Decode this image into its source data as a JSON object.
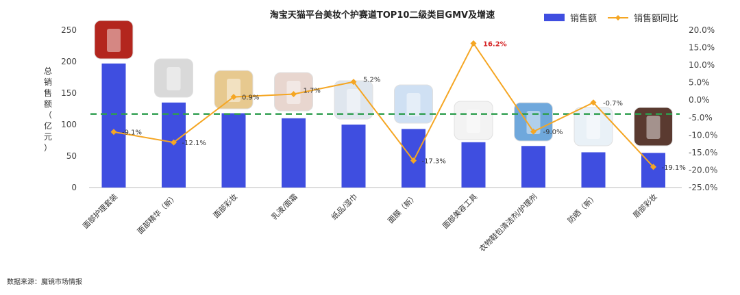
{
  "chart_data": {
    "type": "bar",
    "title": "淘宝天猫平台美妆个护赛道TOP10二级类目GMV及增速",
    "ylabel_left": "总销售额（亿元）",
    "categories": [
      "面部护理套装",
      "面部精华（新）",
      "面部彩妆",
      "乳液/面霜",
      "纸品/湿巾",
      "面膜（新）",
      "面部美容工具",
      "衣物鞋包清洁剂/护理剂",
      "防晒（新）",
      "唇部彩妆"
    ],
    "series": [
      {
        "name": "销售额",
        "kind": "bar",
        "axis": "left",
        "color": "#3f4ee0",
        "values": [
          197,
          135,
          118,
          110,
          100,
          93,
          72,
          66,
          56,
          55
        ]
      },
      {
        "name": "销售额同比",
        "kind": "line",
        "axis": "right",
        "color": "#f5a623",
        "values": [
          -9.1,
          -12.1,
          0.9,
          1.7,
          5.2,
          -17.3,
          16.2,
          -9.0,
          -0.7,
          -19.1
        ]
      }
    ],
    "data_labels": [
      "-9.1%",
      "-12.1%",
      "0.9%",
      "1.7%",
      "5.2%",
      "-17.3%",
      "16.2%",
      "-9.0%",
      "-0.7%",
      "-19.1%"
    ],
    "highlight_index": 6,
    "y_left": {
      "min": 0,
      "max": 250,
      "ticks": [
        "0",
        "50",
        "100",
        "150",
        "200",
        "250"
      ]
    },
    "y_right": {
      "min": -25,
      "max": 20,
      "ticks": [
        "-25.0%",
        "-20.0%",
        "-15.0%",
        "-10.0%",
        "-5.0%",
        "0.0%",
        "5.0%",
        "10.0%",
        "15.0%",
        "20.0%"
      ]
    },
    "reference_line": {
      "axis": "right",
      "value": -4.0,
      "color": "#2e9e4e",
      "style": "dashed"
    },
    "legend": {
      "position": "top-right"
    },
    "grid": false
  },
  "footer": {
    "source": "数据来源：魔镜市场情报"
  }
}
